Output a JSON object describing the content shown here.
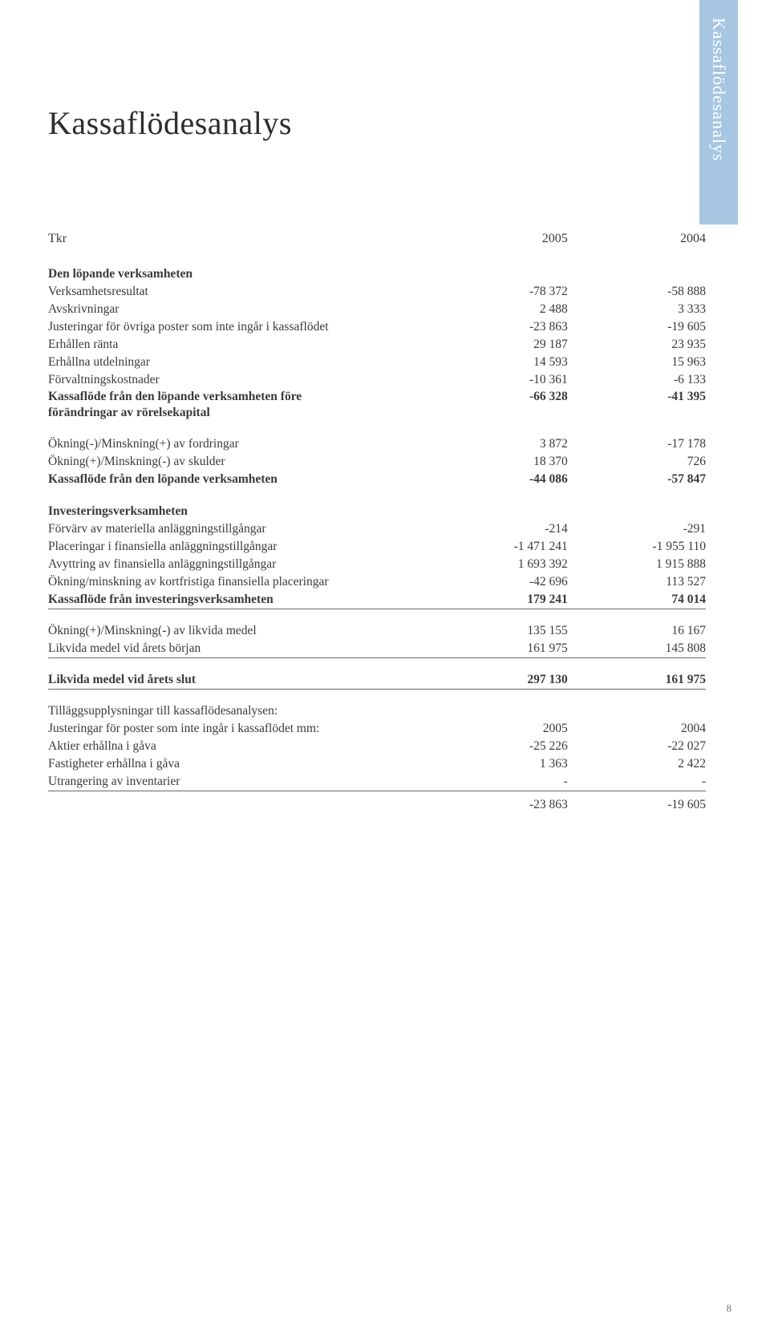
{
  "sideTab": "Kassaflödesanalys",
  "title": "Kassaflödesanalys",
  "header": {
    "c0": "Tkr",
    "c1": "2005",
    "c2": "2004"
  },
  "sections": {
    "s1_title": "Den löpande verksamheten",
    "r1": {
      "l": "Verksamhetsresultat",
      "a": "-78 372",
      "b": "-58 888"
    },
    "r2": {
      "l": "Avskrivningar",
      "a": "2 488",
      "b": "3 333"
    },
    "r3": {
      "l": "Justeringar för övriga poster som inte ingår i kassaflödet",
      "a": "-23 863",
      "b": "-19 605"
    },
    "r4": {
      "l": "Erhållen ränta",
      "a": "29 187",
      "b": "23 935"
    },
    "r5": {
      "l": "Erhållna utdelningar",
      "a": "14 593",
      "b": "15 963"
    },
    "r6": {
      "l": "Förvaltningskostnader",
      "a": "-10 361",
      "b": "-6 133"
    },
    "r7a": {
      "l": "Kassaflöde från den löpande verksamheten före",
      "a": "-66 328",
      "b": "-41 395"
    },
    "r7b": {
      "l": "förändringar av rörelsekapital",
      "a": "",
      "b": ""
    },
    "r8": {
      "l": "Ökning(-)/Minskning(+) av fordringar",
      "a": "3 872",
      "b": "-17 178"
    },
    "r9": {
      "l": "Ökning(+)/Minskning(-) av skulder",
      "a": "18 370",
      "b": "726"
    },
    "r10": {
      "l": "Kassaflöde från den löpande verksamheten",
      "a": "-44 086",
      "b": "-57 847"
    },
    "s2_title": "Investeringsverksamheten",
    "r11": {
      "l": "Förvärv av materiella anläggningstillgångar",
      "a": "-214",
      "b": "-291"
    },
    "r12": {
      "l": "Placeringar i finansiella anläggningstillgångar",
      "a": "-1 471 241",
      "b": "-1 955 110"
    },
    "r13": {
      "l": "Avyttring av finansiella anläggningstillgångar",
      "a": "1 693 392",
      "b": "1 915 888"
    },
    "r14": {
      "l": "Ökning/minskning av kortfristiga finansiella placeringar",
      "a": "-42 696",
      "b": "113 527"
    },
    "r15": {
      "l": "Kassaflöde från investeringsverksamheten",
      "a": "179 241",
      "b": "74 014"
    },
    "r16": {
      "l": "Ökning(+)/Minskning(-) av likvida medel",
      "a": "135 155",
      "b": "16 167"
    },
    "r17": {
      "l": "Likvida medel vid årets början",
      "a": "161 975",
      "b": "145 808"
    },
    "r18": {
      "l": "Likvida medel vid årets slut",
      "a": "297 130",
      "b": "161 975"
    },
    "s3_l1": "Tilläggsupplysningar till kassaflödesanalysen:",
    "s3_l2": {
      "l": "Justeringar för poster som inte ingår i kassaflödet mm:",
      "a": "2005",
      "b": "2004"
    },
    "r19": {
      "l": "Aktier erhållna i gåva",
      "a": "-25 226",
      "b": "-22 027"
    },
    "r20": {
      "l": "Fastigheter erhållna i gåva",
      "a": "1 363",
      "b": "2 422"
    },
    "r21": {
      "l": "Utrangering av inventarier",
      "a": "-",
      "b": "-"
    },
    "r22": {
      "l": "",
      "a": "-23 863",
      "b": "-19 605"
    }
  },
  "pageNumber": "8",
  "style": {
    "text_color": "#3a3a3a",
    "title_color": "#2d2d2d",
    "rule_color": "#6a6a6a",
    "tab_bg": "#a6c6e2",
    "tab_text": "#ffffff",
    "body_fontsize": 15.5,
    "title_fontsize": 40
  }
}
